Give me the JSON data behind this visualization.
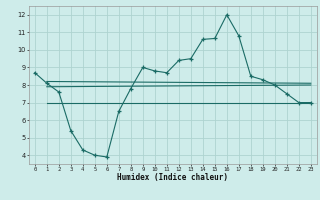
{
  "xlabel": "Humidex (Indice chaleur)",
  "bg_color": "#ceecea",
  "grid_color": "#aed4d0",
  "line_color": "#1a6b65",
  "xlim": [
    -0.5,
    23.5
  ],
  "ylim": [
    3.5,
    12.5
  ],
  "xticks": [
    0,
    1,
    2,
    3,
    4,
    5,
    6,
    7,
    8,
    9,
    10,
    11,
    12,
    13,
    14,
    15,
    16,
    17,
    18,
    19,
    20,
    21,
    22,
    23
  ],
  "yticks": [
    4,
    5,
    6,
    7,
    8,
    9,
    10,
    11,
    12
  ],
  "main_line_x": [
    0,
    1,
    2,
    3,
    4,
    5,
    6,
    7,
    8,
    9,
    10,
    11,
    12,
    13,
    14,
    15,
    16,
    17,
    18,
    19,
    20,
    21,
    22,
    23
  ],
  "main_line_y": [
    8.7,
    8.1,
    7.6,
    5.4,
    4.3,
    4.0,
    3.9,
    6.5,
    7.8,
    9.0,
    8.8,
    8.7,
    9.4,
    9.5,
    10.6,
    10.65,
    12.0,
    10.8,
    8.5,
    8.3,
    8.0,
    7.5,
    7.0,
    7.0
  ],
  "flat_line1_x": [
    1,
    23
  ],
  "flat_line1_y": [
    8.2,
    8.1
  ],
  "flat_line2_x": [
    1,
    23
  ],
  "flat_line2_y": [
    7.9,
    8.0
  ],
  "flat_line3_x": [
    1,
    23
  ],
  "flat_line3_y": [
    7.0,
    7.0
  ]
}
